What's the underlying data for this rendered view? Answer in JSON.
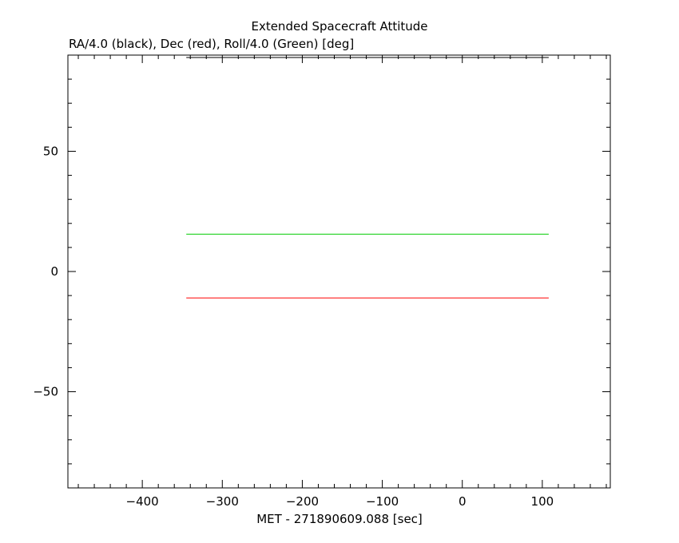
{
  "chart_data": {
    "type": "line",
    "title": "Extended Spacecraft Attitude",
    "subtitle": "RA/4.0 (black), Dec (red), Roll/4.0 (Green) [deg]",
    "xlabel": "MET - 271890609.088 [sec]",
    "ylabel": "",
    "xlim": [
      -493,
      185
    ],
    "ylim": [
      -90,
      90
    ],
    "x_ticks": [
      -400,
      -300,
      -200,
      -100,
      0,
      100
    ],
    "y_ticks": [
      -50,
      0,
      50
    ],
    "x_minor_step": 20,
    "y_minor_step": 10,
    "grid": false,
    "series": [
      {
        "color": "#000000",
        "x": [
          -345,
          108
        ],
        "y": [
          89,
          89
        ]
      },
      {
        "color": "#ff0000",
        "x": [
          -345,
          108
        ],
        "y": [
          -11,
          -11
        ]
      },
      {
        "color": "#00cc00",
        "x": [
          -345,
          108
        ],
        "y": [
          15.5,
          15.5
        ]
      }
    ]
  }
}
